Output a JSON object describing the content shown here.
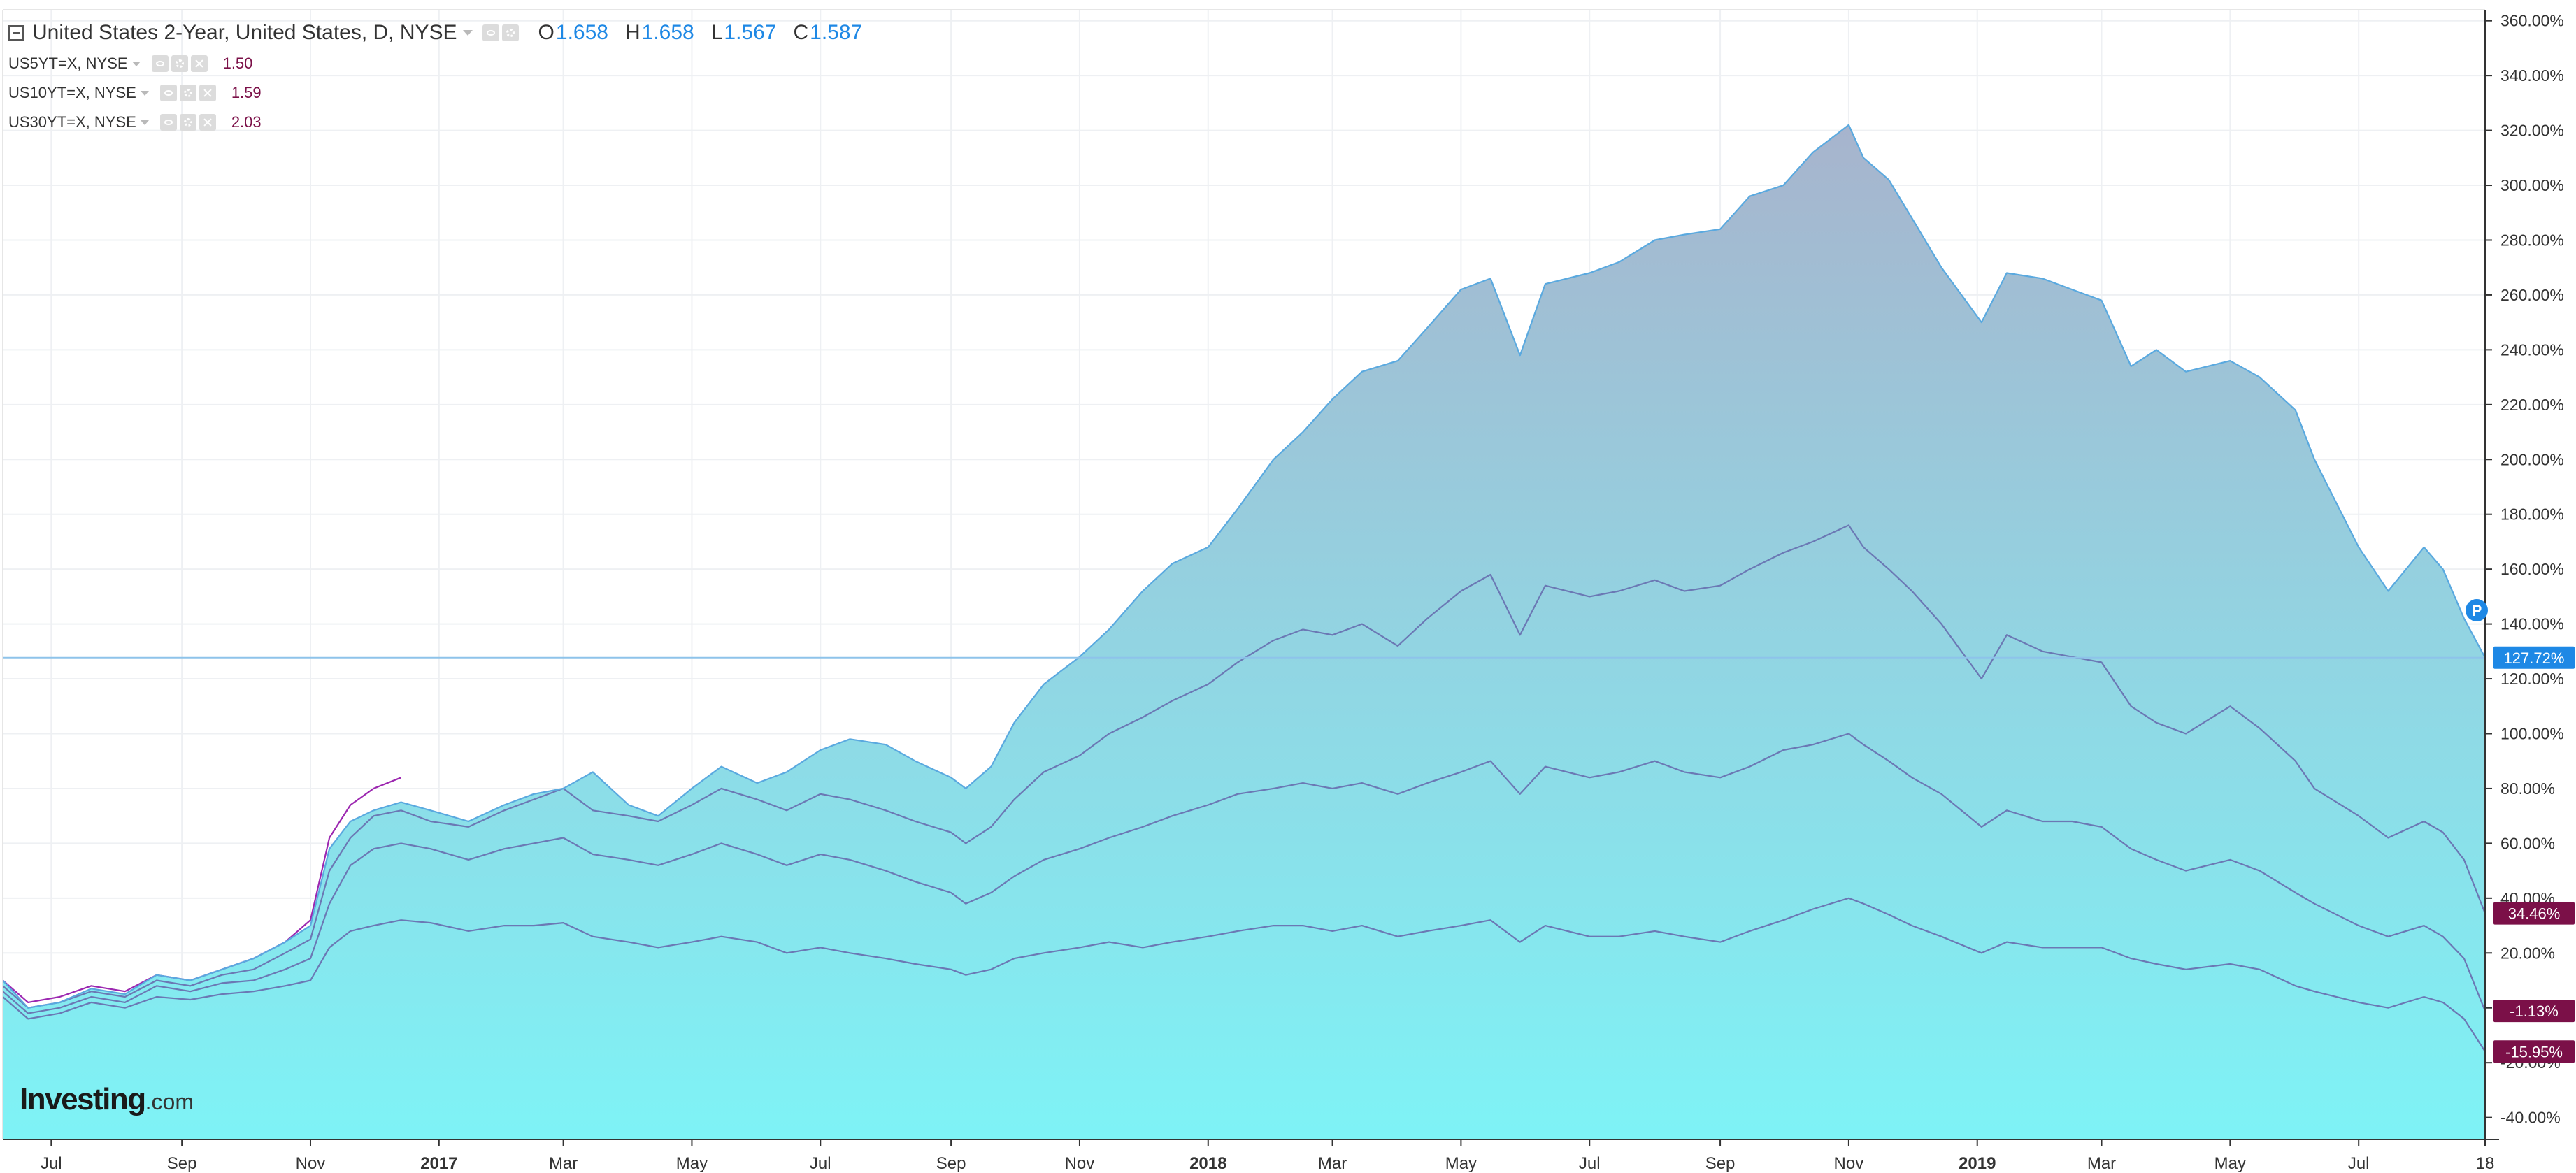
{
  "legend": {
    "main": {
      "title": "United States 2-Year, United States, D, NYSE",
      "open_label": "O",
      "open": "1.658",
      "high_label": "H",
      "high": "1.658",
      "low_label": "L",
      "low": "1.567",
      "close_label": "C",
      "close": "1.587"
    },
    "subs": [
      {
        "name": "US5YT=X, NYSE",
        "value": "1.50"
      },
      {
        "name": "US10YT=X, NYSE",
        "value": "1.59"
      },
      {
        "name": "US30YT=X, NYSE",
        "value": "2.03"
      }
    ]
  },
  "logo": {
    "text": "Investing",
    "suffix": ".com"
  },
  "price_badges": [
    {
      "text": "127.72%",
      "value": 127.72,
      "color": "#1e88e5"
    },
    {
      "text": "34.46%",
      "value": 34.46,
      "color": "#7b1048"
    },
    {
      "text": "-1.13%",
      "value": -1.13,
      "color": "#7b1048"
    },
    {
      "text": "-15.95%",
      "value": -15.95,
      "color": "#7b1048"
    }
  ],
  "p_marker": {
    "text": "P",
    "value": 145,
    "color": "#1e88e5"
  },
  "crosshair_value": 127.72,
  "chart_data": {
    "type": "area",
    "y_unit": "%",
    "ylim": [
      -48,
      364
    ],
    "y_ticks": [
      -40,
      -20,
      0,
      20,
      40,
      60,
      80,
      100,
      120,
      140,
      160,
      180,
      200,
      220,
      240,
      260,
      280,
      300,
      320,
      340,
      360
    ],
    "y_tick_labels": [
      "-40.00%",
      "-20.00%",
      "0.00%",
      "20.00%",
      "40.00%",
      "60.00%",
      "80.00%",
      "100.00%",
      "120.00%",
      "140.00%",
      "160.00%",
      "180.00%",
      "200.00%",
      "220.00%",
      "240.00%",
      "260.00%",
      "280.00%",
      "300.00%",
      "320.00%",
      "340.00%",
      "360.00%"
    ],
    "x_range": [
      "2016-06-08",
      "2019-08-30"
    ],
    "x_ticks": [
      {
        "label": "Jul",
        "date": "2016-07-01"
      },
      {
        "label": "Sep",
        "date": "2016-09-01"
      },
      {
        "label": "Nov",
        "date": "2016-11-01"
      },
      {
        "label": "2017",
        "date": "2017-01-01",
        "bold": true
      },
      {
        "label": "Mar",
        "date": "2017-03-01"
      },
      {
        "label": "May",
        "date": "2017-05-01"
      },
      {
        "label": "Jul",
        "date": "2017-07-01"
      },
      {
        "label": "Sep",
        "date": "2017-09-01"
      },
      {
        "label": "Nov",
        "date": "2017-11-01"
      },
      {
        "label": "2018",
        "date": "2018-01-01",
        "bold": true
      },
      {
        "label": "Mar",
        "date": "2018-03-01"
      },
      {
        "label": "May",
        "date": "2018-05-01"
      },
      {
        "label": "Jul",
        "date": "2018-07-01"
      },
      {
        "label": "Sep",
        "date": "2018-09-01"
      },
      {
        "label": "Nov",
        "date": "2018-11-01"
      },
      {
        "label": "2019",
        "date": "2019-01-01",
        "bold": true
      },
      {
        "label": "Mar",
        "date": "2019-03-01"
      },
      {
        "label": "May",
        "date": "2019-05-01"
      },
      {
        "label": "Jul",
        "date": "2019-07-01"
      },
      {
        "label": "18",
        "date": "2019-08-30"
      }
    ],
    "grid": true,
    "series": [
      {
        "name": "United States 2-Year, United States, D, NYSE",
        "style": "area",
        "color": "#5aa9df",
        "fill_top": "#a7b4cd",
        "fill_bottom": "#7ef3f6",
        "x": [
          "2016-06-08",
          "2016-06-20",
          "2016-07-05",
          "2016-07-20",
          "2016-08-05",
          "2016-08-20",
          "2016-09-05",
          "2016-09-20",
          "2016-10-05",
          "2016-10-20",
          "2016-11-01",
          "2016-11-10",
          "2016-11-20",
          "2016-12-01",
          "2016-12-14",
          "2016-12-28",
          "2017-01-15",
          "2017-02-01",
          "2017-02-15",
          "2017-03-01",
          "2017-03-15",
          "2017-04-01",
          "2017-04-15",
          "2017-05-01",
          "2017-05-15",
          "2017-06-01",
          "2017-06-15",
          "2017-07-01",
          "2017-07-15",
          "2017-08-01",
          "2017-08-15",
          "2017-09-01",
          "2017-09-08",
          "2017-09-20",
          "2017-10-01",
          "2017-10-15",
          "2017-11-01",
          "2017-11-15",
          "2017-12-01",
          "2017-12-15",
          "2018-01-01",
          "2018-01-15",
          "2018-02-01",
          "2018-02-15",
          "2018-03-01",
          "2018-03-15",
          "2018-04-01",
          "2018-04-15",
          "2018-05-01",
          "2018-05-15",
          "2018-05-29",
          "2018-06-10",
          "2018-07-01",
          "2018-07-15",
          "2018-08-01",
          "2018-08-15",
          "2018-09-01",
          "2018-09-15",
          "2018-10-01",
          "2018-10-15",
          "2018-11-01",
          "2018-11-08",
          "2018-11-20",
          "2018-12-01",
          "2018-12-15",
          "2019-01-03",
          "2019-01-15",
          "2019-02-01",
          "2019-02-15",
          "2019-03-01",
          "2019-03-15",
          "2019-03-27",
          "2019-04-10",
          "2019-05-01",
          "2019-05-15",
          "2019-06-01",
          "2019-06-10",
          "2019-07-01",
          "2019-07-15",
          "2019-08-01",
          "2019-08-10",
          "2019-08-20",
          "2019-08-30"
        ],
        "y": [
          10,
          0,
          2,
          7,
          5,
          12,
          10,
          14,
          18,
          24,
          30,
          58,
          68,
          72,
          75,
          72,
          68,
          74,
          78,
          80,
          86,
          74,
          70,
          80,
          88,
          82,
          86,
          94,
          98,
          96,
          90,
          84,
          80,
          88,
          104,
          118,
          128,
          138,
          152,
          162,
          168,
          182,
          200,
          210,
          222,
          232,
          236,
          248,
          262,
          266,
          238,
          264,
          268,
          272,
          280,
          282,
          284,
          296,
          300,
          312,
          322,
          310,
          302,
          288,
          270,
          250,
          268,
          266,
          262,
          258,
          234,
          240,
          232,
          236,
          230,
          218,
          200,
          168,
          152,
          168,
          160,
          142,
          127.72
        ]
      },
      {
        "name": "US5YT=X, NYSE",
        "style": "line",
        "color": "#6b78b4",
        "x": [
          "2016-06-08",
          "2016-06-20",
          "2016-07-05",
          "2016-07-20",
          "2016-08-05",
          "2016-08-20",
          "2016-09-05",
          "2016-09-20",
          "2016-10-05",
          "2016-10-20",
          "2016-11-01",
          "2016-11-10",
          "2016-11-20",
          "2016-12-01",
          "2016-12-14",
          "2016-12-28",
          "2017-01-15",
          "2017-02-01",
          "2017-02-15",
          "2017-03-01",
          "2017-03-15",
          "2017-04-01",
          "2017-04-15",
          "2017-05-01",
          "2017-05-15",
          "2017-06-01",
          "2017-06-15",
          "2017-07-01",
          "2017-07-15",
          "2017-08-01",
          "2017-08-15",
          "2017-09-01",
          "2017-09-08",
          "2017-09-20",
          "2017-10-01",
          "2017-10-15",
          "2017-11-01",
          "2017-11-15",
          "2017-12-01",
          "2017-12-15",
          "2018-01-01",
          "2018-01-15",
          "2018-02-01",
          "2018-02-15",
          "2018-03-01",
          "2018-03-15",
          "2018-04-01",
          "2018-04-15",
          "2018-05-01",
          "2018-05-15",
          "2018-05-29",
          "2018-06-10",
          "2018-07-01",
          "2018-07-15",
          "2018-08-01",
          "2018-08-15",
          "2018-09-01",
          "2018-09-15",
          "2018-10-01",
          "2018-10-15",
          "2018-11-01",
          "2018-11-08",
          "2018-11-20",
          "2018-12-01",
          "2018-12-15",
          "2019-01-03",
          "2019-01-15",
          "2019-02-01",
          "2019-02-15",
          "2019-03-01",
          "2019-03-15",
          "2019-03-27",
          "2019-04-10",
          "2019-05-01",
          "2019-05-15",
          "2019-06-01",
          "2019-06-10",
          "2019-07-01",
          "2019-07-15",
          "2019-08-01",
          "2019-08-10",
          "2019-08-20",
          "2019-08-30"
        ],
        "y": [
          8,
          0,
          2,
          6,
          4,
          10,
          8,
          12,
          14,
          20,
          25,
          50,
          62,
          70,
          72,
          68,
          66,
          72,
          76,
          80,
          72,
          70,
          68,
          74,
          80,
          76,
          72,
          78,
          76,
          72,
          68,
          64,
          60,
          66,
          76,
          86,
          92,
          100,
          106,
          112,
          118,
          126,
          134,
          138,
          136,
          140,
          132,
          142,
          152,
          158,
          136,
          154,
          150,
          152,
          156,
          152,
          154,
          160,
          166,
          170,
          176,
          168,
          160,
          152,
          140,
          120,
          136,
          130,
          128,
          126,
          110,
          104,
          100,
          110,
          102,
          90,
          80,
          70,
          62,
          68,
          64,
          54,
          34.46
        ]
      },
      {
        "name": "US10YT=X, NYSE",
        "style": "line",
        "color": "#6b78b4",
        "x": [
          "2016-06-08",
          "2016-06-20",
          "2016-07-05",
          "2016-07-20",
          "2016-08-05",
          "2016-08-20",
          "2016-09-05",
          "2016-09-20",
          "2016-10-05",
          "2016-10-20",
          "2016-11-01",
          "2016-11-10",
          "2016-11-20",
          "2016-12-01",
          "2016-12-14",
          "2016-12-28",
          "2017-01-15",
          "2017-02-01",
          "2017-02-15",
          "2017-03-01",
          "2017-03-15",
          "2017-04-01",
          "2017-04-15",
          "2017-05-01",
          "2017-05-15",
          "2017-06-01",
          "2017-06-15",
          "2017-07-01",
          "2017-07-15",
          "2017-08-01",
          "2017-08-15",
          "2017-09-01",
          "2017-09-08",
          "2017-09-20",
          "2017-10-01",
          "2017-10-15",
          "2017-11-01",
          "2017-11-15",
          "2017-12-01",
          "2017-12-15",
          "2018-01-01",
          "2018-01-15",
          "2018-02-01",
          "2018-02-15",
          "2018-03-01",
          "2018-03-15",
          "2018-04-01",
          "2018-04-15",
          "2018-05-01",
          "2018-05-15",
          "2018-05-29",
          "2018-06-10",
          "2018-07-01",
          "2018-07-15",
          "2018-08-01",
          "2018-08-15",
          "2018-09-01",
          "2018-09-15",
          "2018-10-01",
          "2018-10-15",
          "2018-11-01",
          "2018-11-08",
          "2018-11-20",
          "2018-12-01",
          "2018-12-15",
          "2019-01-03",
          "2019-01-15",
          "2019-02-01",
          "2019-02-15",
          "2019-03-01",
          "2019-03-15",
          "2019-03-27",
          "2019-04-10",
          "2019-05-01",
          "2019-05-15",
          "2019-06-01",
          "2019-06-10",
          "2019-07-01",
          "2019-07-15",
          "2019-08-01",
          "2019-08-10",
          "2019-08-20",
          "2019-08-30"
        ],
        "y": [
          6,
          -2,
          0,
          4,
          2,
          8,
          6,
          9,
          10,
          14,
          18,
          38,
          52,
          58,
          60,
          58,
          54,
          58,
          60,
          62,
          56,
          54,
          52,
          56,
          60,
          56,
          52,
          56,
          54,
          50,
          46,
          42,
          38,
          42,
          48,
          54,
          58,
          62,
          66,
          70,
          74,
          78,
          80,
          82,
          80,
          82,
          78,
          82,
          86,
          90,
          78,
          88,
          84,
          86,
          90,
          86,
          84,
          88,
          94,
          96,
          100,
          96,
          90,
          84,
          78,
          66,
          72,
          68,
          68,
          66,
          58,
          54,
          50,
          54,
          50,
          42,
          38,
          30,
          26,
          30,
          26,
          18,
          -1.13
        ]
      },
      {
        "name": "US30YT=X, NYSE",
        "style": "line",
        "color": "#6b78b4",
        "x": [
          "2016-06-08",
          "2016-06-20",
          "2016-07-05",
          "2016-07-20",
          "2016-08-05",
          "2016-08-20",
          "2016-09-05",
          "2016-09-20",
          "2016-10-05",
          "2016-10-20",
          "2016-11-01",
          "2016-11-10",
          "2016-11-20",
          "2016-12-01",
          "2016-12-14",
          "2016-12-28",
          "2017-01-15",
          "2017-02-01",
          "2017-02-15",
          "2017-03-01",
          "2017-03-15",
          "2017-04-01",
          "2017-04-15",
          "2017-05-01",
          "2017-05-15",
          "2017-06-01",
          "2017-06-15",
          "2017-07-01",
          "2017-07-15",
          "2017-08-01",
          "2017-08-15",
          "2017-09-01",
          "2017-09-08",
          "2017-09-20",
          "2017-10-01",
          "2017-10-15",
          "2017-11-01",
          "2017-11-15",
          "2017-12-01",
          "2017-12-15",
          "2018-01-01",
          "2018-01-15",
          "2018-02-01",
          "2018-02-15",
          "2018-03-01",
          "2018-03-15",
          "2018-04-01",
          "2018-04-15",
          "2018-05-01",
          "2018-05-15",
          "2018-05-29",
          "2018-06-10",
          "2018-07-01",
          "2018-07-15",
          "2018-08-01",
          "2018-08-15",
          "2018-09-01",
          "2018-09-15",
          "2018-10-01",
          "2018-10-15",
          "2018-11-01",
          "2018-11-08",
          "2018-11-20",
          "2018-12-01",
          "2018-12-15",
          "2019-01-03",
          "2019-01-15",
          "2019-02-01",
          "2019-02-15",
          "2019-03-01",
          "2019-03-15",
          "2019-03-27",
          "2019-04-10",
          "2019-05-01",
          "2019-05-15",
          "2019-06-01",
          "2019-06-10",
          "2019-07-01",
          "2019-07-15",
          "2019-08-01",
          "2019-08-10",
          "2019-08-20",
          "2019-08-30"
        ],
        "y": [
          4,
          -4,
          -2,
          2,
          0,
          4,
          3,
          5,
          6,
          8,
          10,
          22,
          28,
          30,
          32,
          31,
          28,
          30,
          30,
          31,
          26,
          24,
          22,
          24,
          26,
          24,
          20,
          22,
          20,
          18,
          16,
          14,
          12,
          14,
          18,
          20,
          22,
          24,
          22,
          24,
          26,
          28,
          30,
          30,
          28,
          30,
          26,
          28,
          30,
          32,
          24,
          30,
          26,
          26,
          28,
          26,
          24,
          28,
          32,
          36,
          40,
          38,
          34,
          30,
          26,
          20,
          24,
          22,
          22,
          22,
          18,
          16,
          14,
          16,
          14,
          8,
          6,
          2,
          0,
          4,
          2,
          -4,
          -15.95
        ]
      },
      {
        "name": "",
        "style": "line",
        "color": "#9c27b0",
        "x": [
          "2016-06-08",
          "2016-06-20",
          "2016-07-05",
          "2016-07-20",
          "2016-08-05",
          "2016-08-20",
          "2016-09-05",
          "2016-09-20",
          "2016-10-05",
          "2016-10-20",
          "2016-11-01",
          "2016-11-10",
          "2016-11-20",
          "2016-12-01",
          "2016-12-14"
        ],
        "y": [
          10,
          2,
          4,
          8,
          6,
          12,
          10,
          14,
          18,
          24,
          32,
          62,
          74,
          80,
          84
        ]
      }
    ]
  }
}
